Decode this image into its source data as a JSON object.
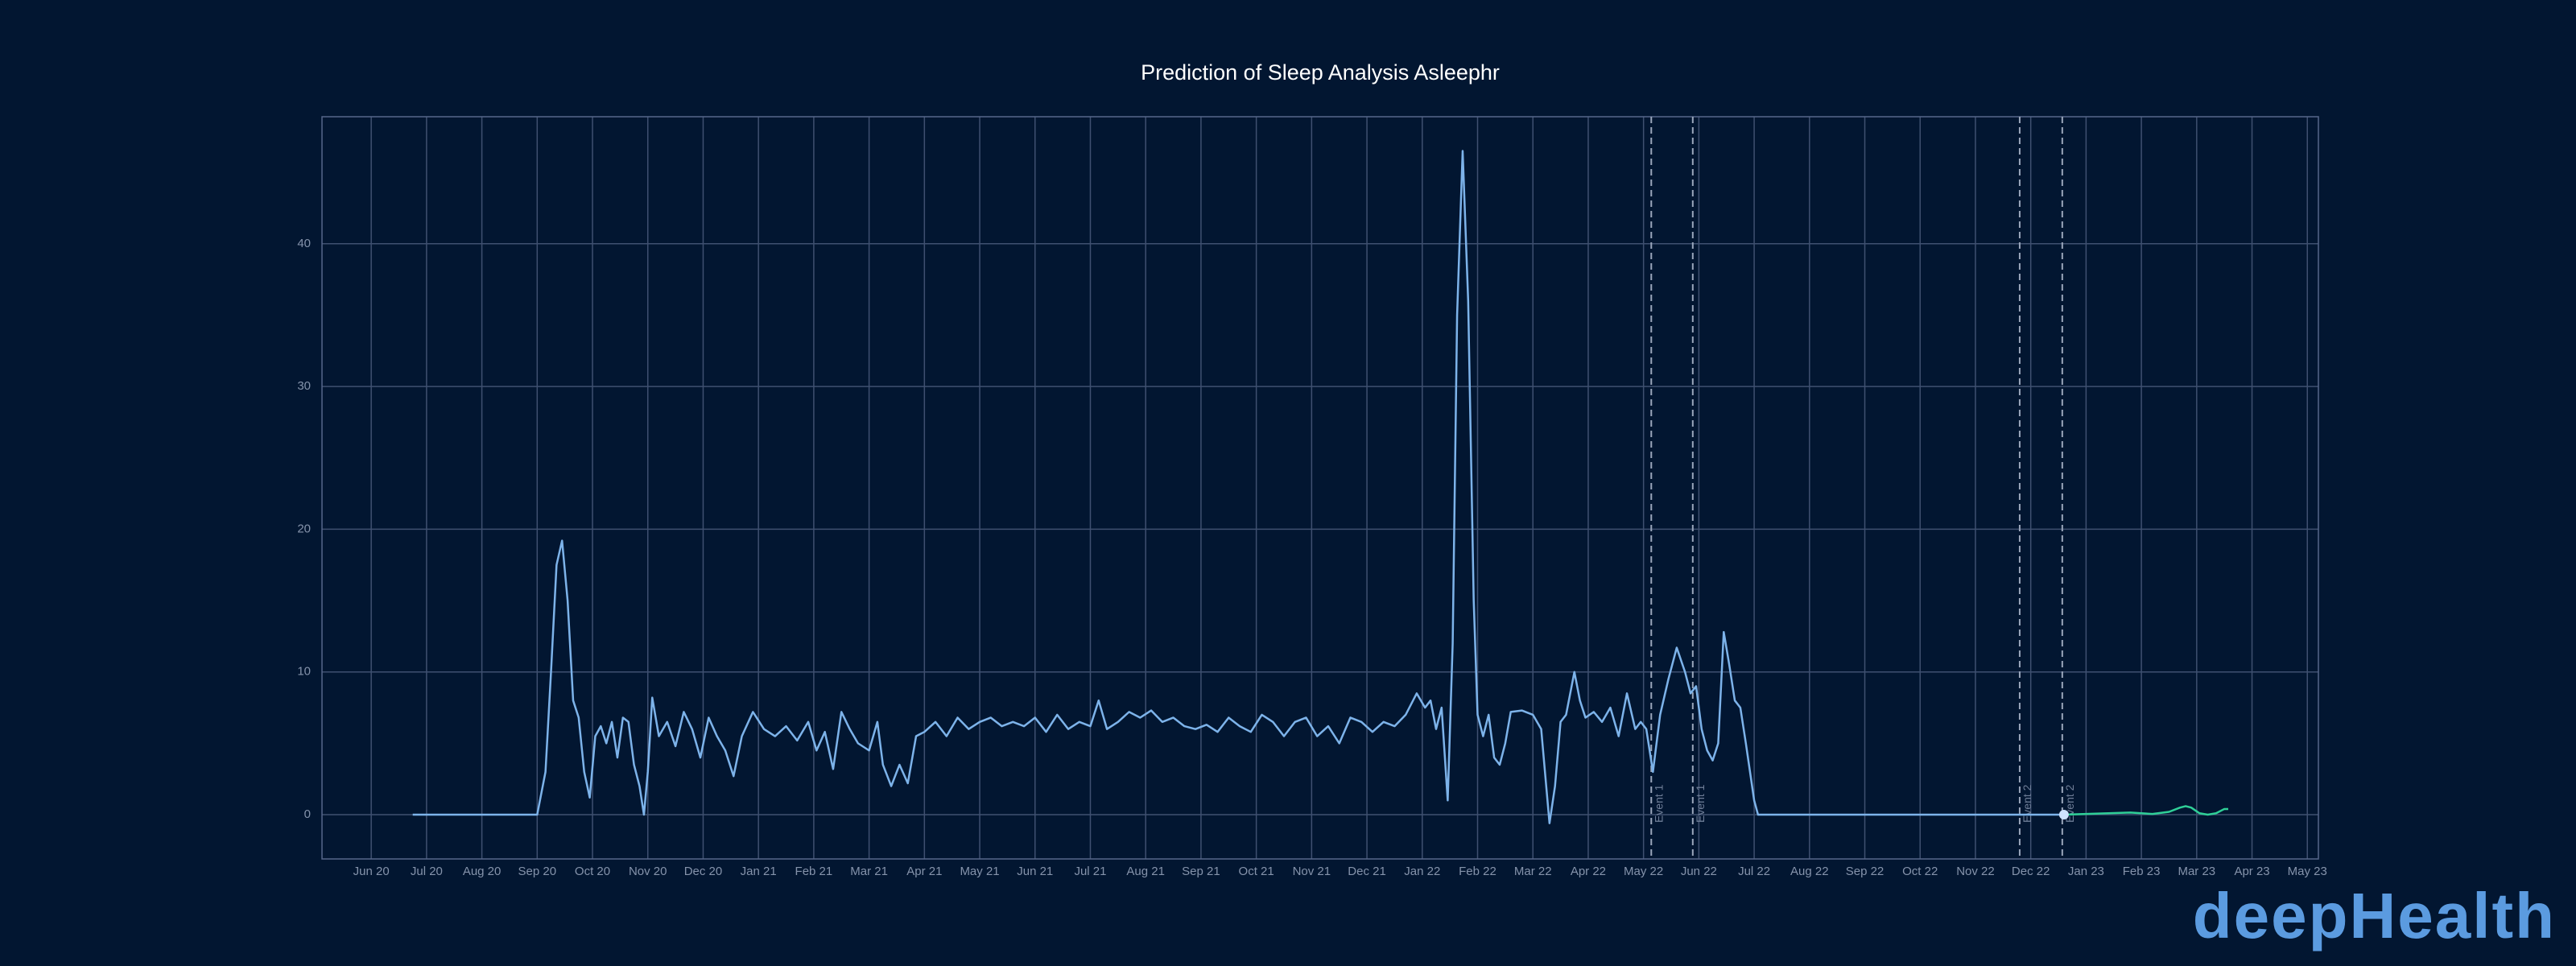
{
  "chart_data": {
    "type": "line",
    "title": "Prediction of Sleep Analysis Asleephr",
    "xlim": [
      -0.89,
      35.2
    ],
    "xticks": [
      {
        "value": 0,
        "label": "Jun 20"
      },
      {
        "value": 1,
        "label": "Jul 20"
      },
      {
        "value": 2,
        "label": "Aug 20"
      },
      {
        "value": 3,
        "label": "Sep 20"
      },
      {
        "value": 4,
        "label": "Oct 20"
      },
      {
        "value": 5,
        "label": "Nov 20"
      },
      {
        "value": 6,
        "label": "Dec 20"
      },
      {
        "value": 7,
        "label": "Jan 21"
      },
      {
        "value": 8,
        "label": "Feb 21"
      },
      {
        "value": 9,
        "label": "Mar 21"
      },
      {
        "value": 10,
        "label": "Apr 21"
      },
      {
        "value": 11,
        "label": "May 21"
      },
      {
        "value": 12,
        "label": "Jun 21"
      },
      {
        "value": 13,
        "label": "Jul 21"
      },
      {
        "value": 14,
        "label": "Aug 21"
      },
      {
        "value": 15,
        "label": "Sep 21"
      },
      {
        "value": 16,
        "label": "Oct 21"
      },
      {
        "value": 17,
        "label": "Nov 21"
      },
      {
        "value": 18,
        "label": "Dec 21"
      },
      {
        "value": 19,
        "label": "Jan 22"
      },
      {
        "value": 20,
        "label": "Feb 22"
      },
      {
        "value": 21,
        "label": "Mar 22"
      },
      {
        "value": 22,
        "label": "Apr 22"
      },
      {
        "value": 23,
        "label": "May 22"
      },
      {
        "value": 24,
        "label": "Jun 22"
      },
      {
        "value": 25,
        "label": "Jul 22"
      },
      {
        "value": 26,
        "label": "Aug 22"
      },
      {
        "value": 27,
        "label": "Sep 22"
      },
      {
        "value": 28,
        "label": "Oct 22"
      },
      {
        "value": 29,
        "label": "Nov 22"
      },
      {
        "value": 30,
        "label": "Dec 22"
      },
      {
        "value": 31,
        "label": "Jan 23"
      },
      {
        "value": 32,
        "label": "Feb 23"
      },
      {
        "value": 33,
        "label": "Mar 23"
      },
      {
        "value": 34,
        "label": "Apr 23"
      },
      {
        "value": 35,
        "label": "May 23"
      }
    ],
    "ylim": [
      -3.1,
      48.9
    ],
    "yticks": [
      0,
      10,
      20,
      30,
      40
    ],
    "grid": true,
    "series": [
      {
        "color": "#7db3ea",
        "x": [
          0.75,
          1.5,
          2.25,
          3.0,
          3.15,
          3.25,
          3.35,
          3.45,
          3.55,
          3.65,
          3.75,
          3.85,
          3.95,
          4.05,
          4.15,
          4.25,
          4.35,
          4.45,
          4.55,
          4.65,
          4.75,
          4.85,
          4.93,
          5.0,
          5.08,
          5.2,
          5.35,
          5.5,
          5.65,
          5.8,
          5.95,
          6.1,
          6.25,
          6.4,
          6.55,
          6.7,
          6.9,
          7.1,
          7.3,
          7.5,
          7.7,
          7.9,
          8.05,
          8.2,
          8.35,
          8.5,
          8.65,
          8.8,
          9.0,
          9.15,
          9.25,
          9.4,
          9.55,
          9.7,
          9.85,
          10.0,
          10.2,
          10.4,
          10.6,
          10.8,
          11.0,
          11.2,
          11.4,
          11.6,
          11.8,
          12.0,
          12.2,
          12.4,
          12.6,
          12.8,
          13.0,
          13.15,
          13.3,
          13.5,
          13.7,
          13.9,
          14.1,
          14.3,
          14.5,
          14.7,
          14.9,
          15.1,
          15.3,
          15.5,
          15.7,
          15.9,
          16.1,
          16.3,
          16.5,
          16.7,
          16.9,
          17.1,
          17.3,
          17.5,
          17.7,
          17.9,
          18.1,
          18.3,
          18.5,
          18.7,
          18.9,
          19.05,
          19.15,
          19.25,
          19.35,
          19.46,
          19.55,
          19.63,
          19.73,
          19.83,
          19.93,
          20.0,
          20.1,
          20.2,
          20.3,
          20.4,
          20.5,
          20.6,
          20.8,
          21.0,
          21.15,
          21.3,
          21.4,
          21.5,
          21.6,
          21.75,
          21.85,
          21.95,
          22.1,
          22.25,
          22.4,
          22.55,
          22.7,
          22.85,
          22.95,
          23.05,
          23.17,
          23.3,
          23.45,
          23.6,
          23.75,
          23.85,
          23.95,
          24.05,
          24.15,
          24.25,
          24.35,
          24.45,
          24.55,
          24.65,
          24.75,
          24.85,
          25.0,
          25.07,
          26,
          27,
          28,
          29,
          30,
          30.6
        ],
        "values": [
          0,
          0,
          0,
          0,
          3,
          10,
          17.5,
          19.2,
          15,
          8,
          6.8,
          3,
          1.2,
          5.5,
          6.2,
          5,
          6.5,
          4,
          6.8,
          6.5,
          3.5,
          2,
          0,
          3,
          8.2,
          5.5,
          6.5,
          4.8,
          7.2,
          6,
          4,
          6.8,
          5.5,
          4.5,
          2.7,
          5.5,
          7.2,
          6,
          5.5,
          6.2,
          5.2,
          6.5,
          4.5,
          5.8,
          3.2,
          7.2,
          6,
          5,
          4.5,
          6.5,
          3.5,
          2,
          3.5,
          2.2,
          5.5,
          5.8,
          6.5,
          5.5,
          6.8,
          6,
          6.5,
          6.8,
          6.2,
          6.5,
          6.2,
          6.8,
          5.8,
          7,
          6,
          6.5,
          6.2,
          8,
          6,
          6.5,
          7.2,
          6.8,
          7.3,
          6.5,
          6.8,
          6.2,
          6,
          6.3,
          5.8,
          6.8,
          6.2,
          5.8,
          7,
          6.5,
          5.5,
          6.5,
          6.8,
          5.5,
          6.2,
          5,
          6.8,
          6.5,
          5.8,
          6.5,
          6.2,
          7,
          8.5,
          7.5,
          8,
          6,
          7.5,
          1,
          12,
          35,
          46.5,
          36,
          15,
          7,
          5.5,
          7,
          4,
          3.5,
          5,
          7.2,
          7.3,
          7,
          6,
          -0.6,
          2,
          6.5,
          7,
          10,
          8,
          6.8,
          7.2,
          6.5,
          7.5,
          5.5,
          8.5,
          6,
          6.5,
          6,
          3,
          7,
          9.5,
          11.7,
          10,
          8.5,
          9,
          6,
          4.5,
          3.8,
          5,
          12.8,
          10.5,
          8,
          7.5,
          5,
          1,
          0,
          0,
          0,
          0,
          0,
          0,
          0
        ]
      },
      {
        "color": "#2fcf97",
        "x": [
          30.6,
          31.0,
          31.4,
          31.8,
          32.2,
          32.5,
          32.7,
          32.8,
          32.9,
          33.05,
          33.2,
          33.35,
          33.5,
          33.57
        ],
        "values": [
          0,
          0.05,
          0.1,
          0.15,
          0.05,
          0.2,
          0.5,
          0.6,
          0.5,
          0.1,
          0,
          0.1,
          0.4,
          0.4
        ]
      }
    ],
    "annotations": [
      {
        "x": 23.14,
        "label": "Event 1"
      },
      {
        "x": 23.89,
        "label": "Event 1"
      },
      {
        "x": 29.8,
        "label": "Event 2"
      },
      {
        "x": 30.57,
        "label": "Event 2"
      }
    ]
  },
  "logo": "deepHealth"
}
